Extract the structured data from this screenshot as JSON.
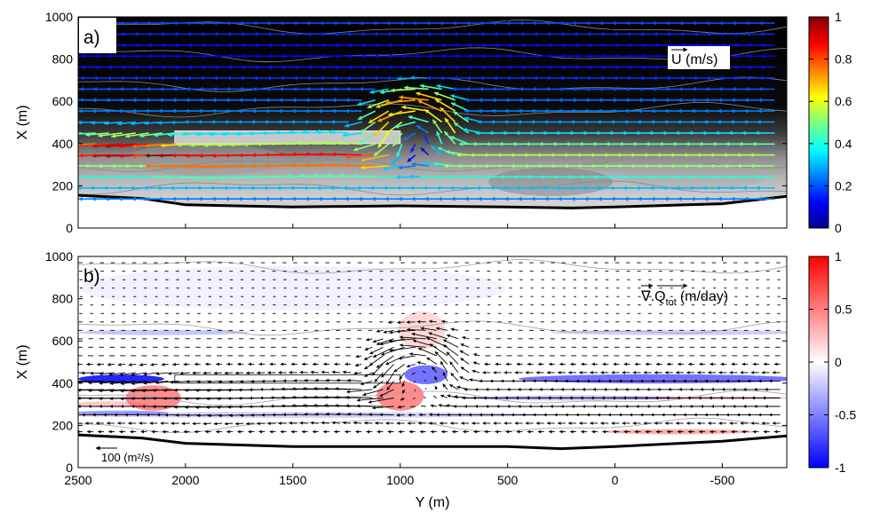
{
  "chart_data": [
    {
      "type": "vector-field",
      "panel_label": "a)",
      "quantity_label": "U (m/s)",
      "xlabel": "",
      "ylabel": "X (m)",
      "x_range": [
        2500,
        -800
      ],
      "y_range": [
        0,
        1000
      ],
      "y_ticks": [
        "0",
        "200",
        "400",
        "600",
        "800",
        "1000"
      ],
      "colorbar": {
        "min": 0,
        "max": 1,
        "ticks": [
          "0",
          "0.2",
          "0.4",
          "0.6",
          "0.8",
          "1"
        ],
        "colormap": "jet"
      },
      "background": "bathymetry grey shading, black offshore",
      "structure": {
        "y_start": 2050,
        "y_end": 1000,
        "x_low": 400,
        "x_high": 460
      },
      "shoreline": [
        [
          2500,
          155
        ],
        [
          2200,
          140
        ],
        [
          2000,
          110
        ],
        [
          1500,
          100
        ],
        [
          1000,
          105
        ],
        [
          500,
          100
        ],
        [
          200,
          95
        ],
        [
          0,
          100
        ],
        [
          -500,
          115
        ],
        [
          -800,
          150
        ]
      ]
    },
    {
      "type": "vector-field",
      "panel_label": "b)",
      "quantity_label": "∇.Q",
      "quantity_subscript": "tot",
      "quantity_units": "(m/day)",
      "xlabel": "Y (m)",
      "ylabel": "X (m)",
      "x_range": [
        2500,
        -800
      ],
      "x_ticks": [
        "2500",
        "2000",
        "1500",
        "1000",
        "500",
        "0",
        "-500"
      ],
      "x_tick_values": [
        2500,
        2000,
        1500,
        1000,
        500,
        0,
        -500
      ],
      "y_range": [
        0,
        1000
      ],
      "y_ticks": [
        "0",
        "200",
        "400",
        "600",
        "800",
        "1000"
      ],
      "colorbar": {
        "min": -1,
        "max": 1,
        "ticks": [
          "-1",
          "-0.5",
          "0",
          "0.5",
          "1"
        ],
        "colormap": "blue-white-red"
      },
      "scale_arrow_label": "100 (m²/s)",
      "structure": {
        "y_start": 2050,
        "y_end": 1000,
        "x_low": 400,
        "x_high": 440
      },
      "shoreline": [
        [
          2500,
          155
        ],
        [
          2200,
          140
        ],
        [
          2000,
          115
        ],
        [
          1500,
          100
        ],
        [
          1000,
          100
        ],
        [
          500,
          100
        ],
        [
          250,
          90
        ],
        [
          0,
          100
        ],
        [
          -500,
          125
        ],
        [
          -800,
          150
        ]
      ]
    }
  ]
}
